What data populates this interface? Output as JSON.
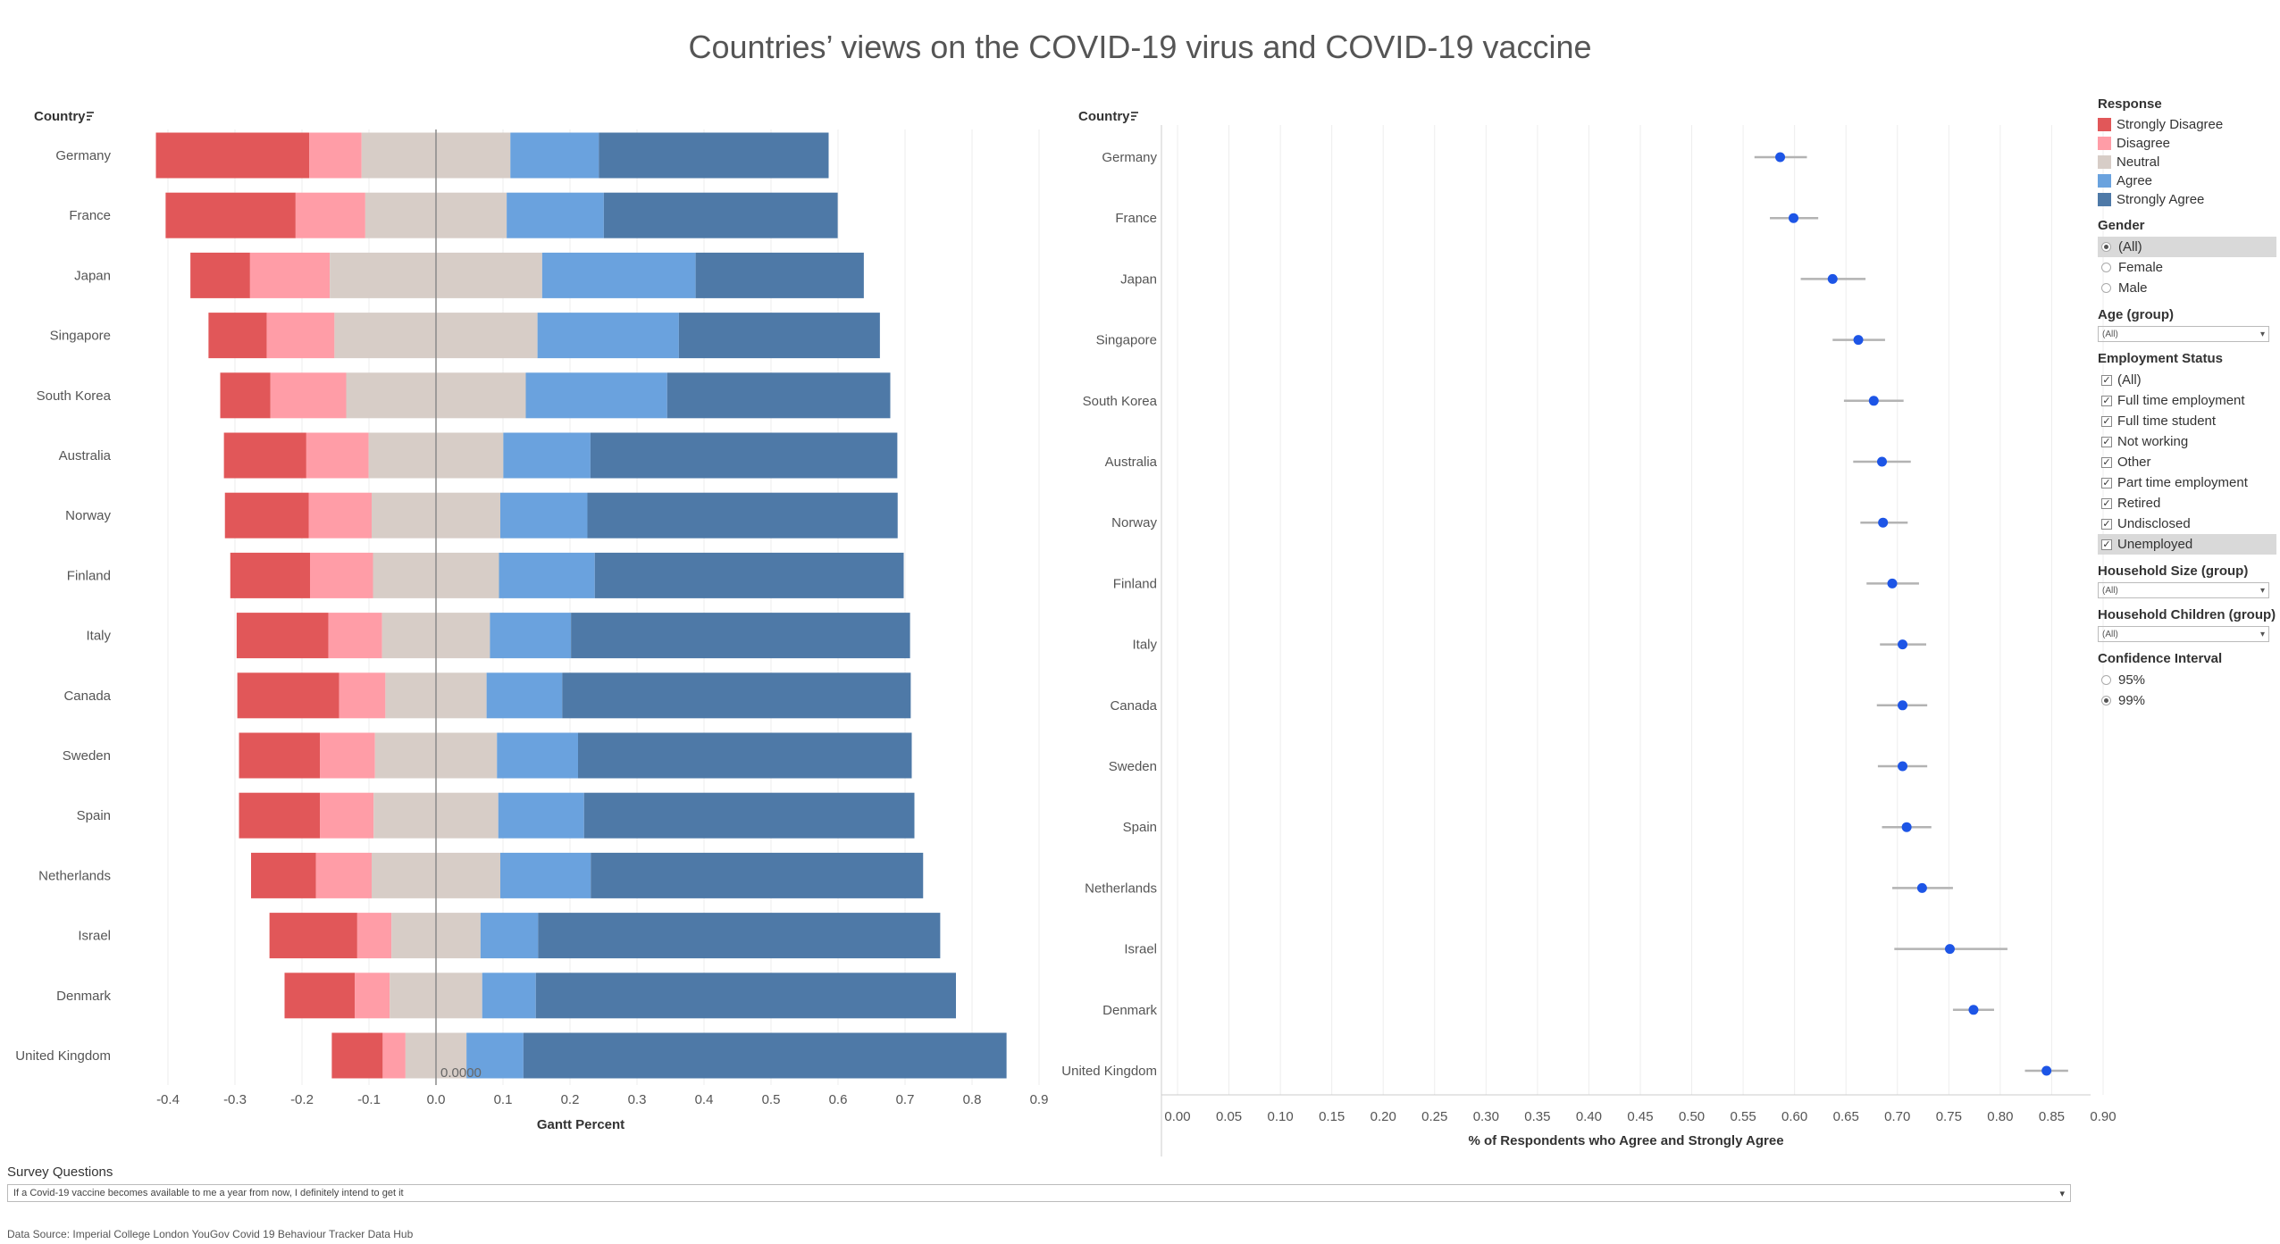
{
  "title": "Countries’ views on the COVID-19 virus and COVID-19 vaccine",
  "colors": {
    "strongly_disagree": "#e15759",
    "disagree": "#ff9da7",
    "neutral": "#d7cdc7",
    "agree": "#6aa2de",
    "strongly_agree": "#4e79a7",
    "dot": "#1d55e6",
    "ci": "#b3b3b3"
  },
  "left_chart": {
    "row_header": "Country",
    "sort_icon": "sort-icon",
    "xlabel": "Gantt Percent",
    "zero_label": "0.0000"
  },
  "right_chart": {
    "row_header": "Country",
    "sort_icon": "sort-icon",
    "xlabel": "% of Respondents who Agree and Strongly Agree"
  },
  "chart_data": [
    {
      "type": "bar",
      "subtype": "diverging-stacked",
      "xlabel": "Gantt Percent",
      "xlim": [
        -0.45,
        0.9
      ],
      "xticks": [
        "-0.4",
        "-0.3",
        "-0.2",
        "-0.1",
        "0.0",
        "0.1",
        "0.2",
        "0.3",
        "0.4",
        "0.5",
        "0.6",
        "0.7",
        "0.8",
        "0.9"
      ],
      "categories": [
        "Germany",
        "France",
        "Japan",
        "Singapore",
        "South Korea",
        "Australia",
        "Norway",
        "Finland",
        "Italy",
        "Canada",
        "Sweden",
        "Spain",
        "Netherlands",
        "Israel",
        "Denmark",
        "United Kingdom"
      ],
      "legend_placement": "right",
      "grid": true,
      "segments_order": [
        "Strongly Disagree",
        "Disagree",
        "Neutral",
        "Agree",
        "Strongly Agree"
      ],
      "series": [
        {
          "name": "Strongly Disagree",
          "values": [
            0.229,
            0.194,
            0.089,
            0.087,
            0.075,
            0.123,
            0.125,
            0.119,
            0.137,
            0.152,
            0.121,
            0.121,
            0.097,
            0.131,
            0.105,
            0.076
          ]
        },
        {
          "name": "Disagree",
          "values": [
            0.078,
            0.104,
            0.119,
            0.101,
            0.113,
            0.093,
            0.094,
            0.094,
            0.08,
            0.069,
            0.082,
            0.08,
            0.083,
            0.051,
            0.052,
            0.034
          ]
        },
        {
          "name": "Neutral",
          "values": [
            0.222,
            0.211,
            0.317,
            0.303,
            0.268,
            0.201,
            0.192,
            0.188,
            0.161,
            0.151,
            0.182,
            0.186,
            0.192,
            0.133,
            0.138,
            0.091
          ]
        },
        {
          "name": "Agree",
          "values": [
            0.132,
            0.145,
            0.229,
            0.211,
            0.211,
            0.13,
            0.13,
            0.143,
            0.121,
            0.113,
            0.121,
            0.128,
            0.135,
            0.086,
            0.08,
            0.085
          ]
        },
        {
          "name": "Strongly Agree",
          "values": [
            0.343,
            0.349,
            0.251,
            0.3,
            0.333,
            0.458,
            0.463,
            0.461,
            0.506,
            0.52,
            0.498,
            0.493,
            0.496,
            0.6,
            0.627,
            0.721
          ]
        }
      ]
    },
    {
      "type": "scatter",
      "subtype": "dot-with-confidence-interval",
      "xlabel": "% of Respondents who Agree and Strongly Agree",
      "xlim": [
        0.0,
        0.9
      ],
      "xticks": [
        "0.00",
        "0.05",
        "0.10",
        "0.15",
        "0.20",
        "0.25",
        "0.30",
        "0.35",
        "0.40",
        "0.45",
        "0.50",
        "0.55",
        "0.60",
        "0.65",
        "0.70",
        "0.75",
        "0.80",
        "0.85",
        "0.90"
      ],
      "categories": [
        "Germany",
        "France",
        "Japan",
        "Singapore",
        "South Korea",
        "Australia",
        "Norway",
        "Finland",
        "Italy",
        "Canada",
        "Sweden",
        "Spain",
        "Netherlands",
        "Israel",
        "Denmark",
        "United Kingdom"
      ],
      "grid": true,
      "values": [
        0.586,
        0.599,
        0.637,
        0.662,
        0.677,
        0.685,
        0.686,
        0.695,
        0.705,
        0.705,
        0.705,
        0.709,
        0.724,
        0.751,
        0.774,
        0.845
      ],
      "ci_low": [
        0.561,
        0.576,
        0.606,
        0.637,
        0.648,
        0.657,
        0.664,
        0.67,
        0.683,
        0.68,
        0.681,
        0.685,
        0.695,
        0.697,
        0.754,
        0.824
      ],
      "ci_high": [
        0.612,
        0.623,
        0.669,
        0.688,
        0.706,
        0.713,
        0.71,
        0.721,
        0.728,
        0.729,
        0.729,
        0.733,
        0.754,
        0.807,
        0.794,
        0.866
      ]
    }
  ],
  "filters": {
    "response": {
      "title": "Response",
      "items": [
        "Strongly Disagree",
        "Disagree",
        "Neutral",
        "Agree",
        "Strongly Agree"
      ]
    },
    "gender": {
      "title": "Gender",
      "options": [
        "(All)",
        "Female",
        "Male"
      ],
      "selected": "(All)"
    },
    "age_group": {
      "title": "Age (group)",
      "value": "(All)"
    },
    "employment_status": {
      "title": "Employment Status",
      "options": [
        "(All)",
        "Full time employment",
        "Full time student",
        "Not working",
        "Other",
        "Part time employment",
        "Retired",
        "Undisclosed",
        "Unemployed"
      ]
    },
    "household_size": {
      "title": "Household Size (group)",
      "value": "(All)"
    },
    "household_children": {
      "title": "Household Children (group)",
      "value": "(All)"
    },
    "confidence_interval": {
      "title": "Confidence Interval",
      "options": [
        "95%",
        "99%"
      ],
      "selected": "99%"
    }
  },
  "survey": {
    "label": "Survey Questions",
    "value": "If a Covid-19 vaccine becomes available to me a year from now, I definitely intend to get it"
  },
  "source": "Data Source: Imperial College London YouGov Covid 19 Behaviour Tracker Data Hub"
}
